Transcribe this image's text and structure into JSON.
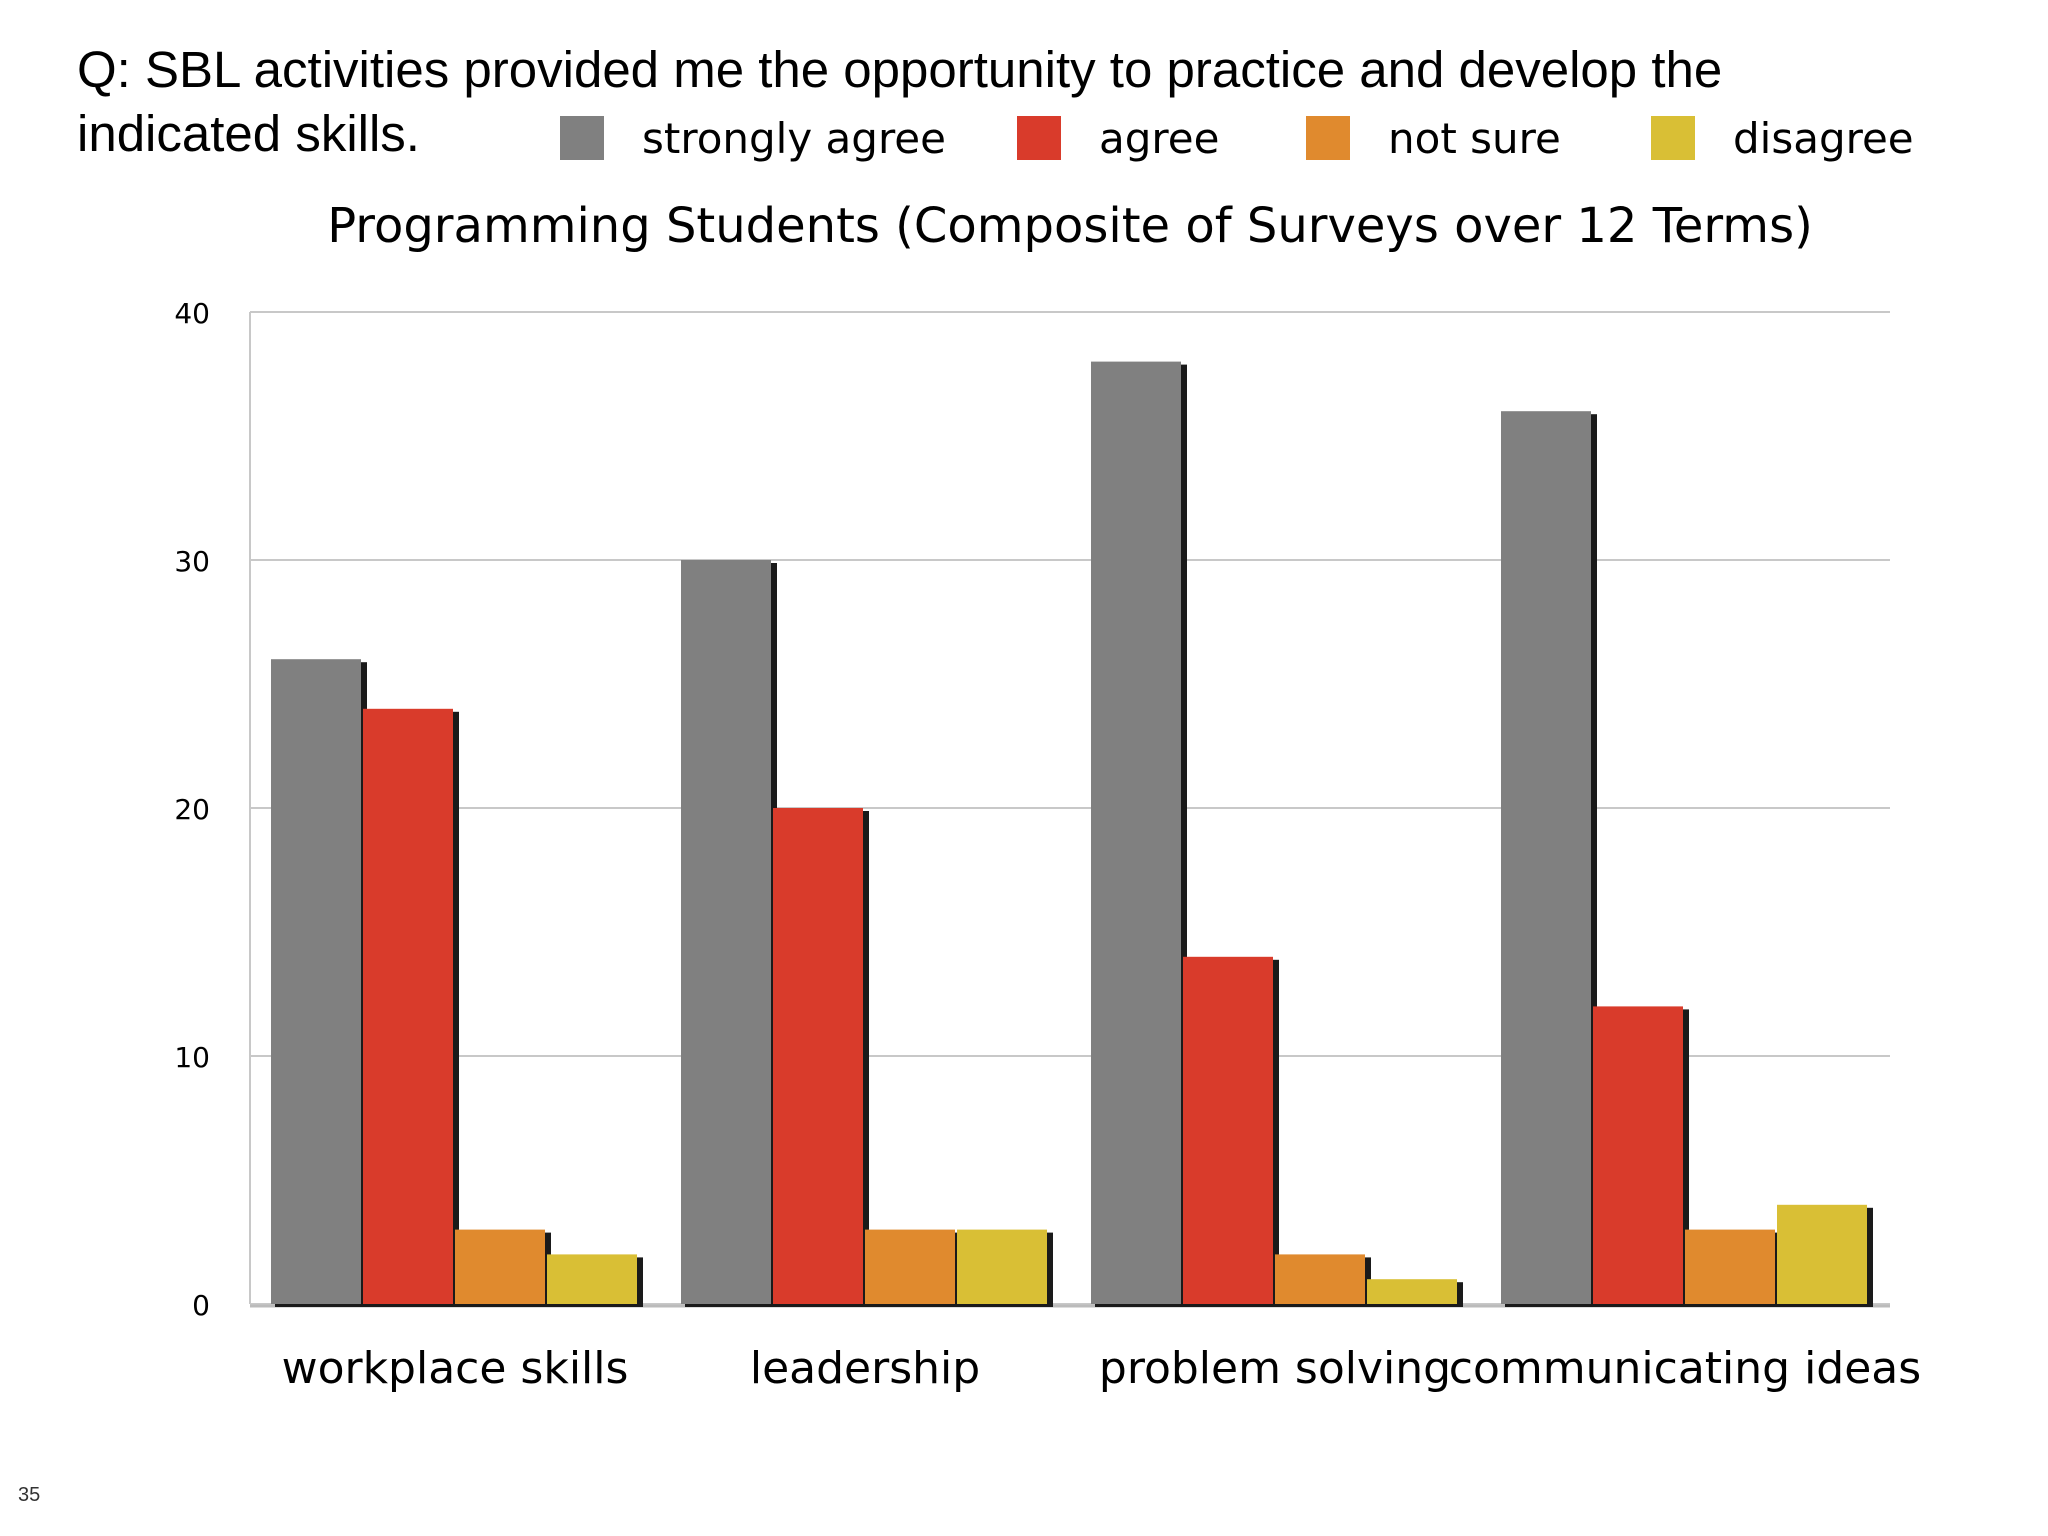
{
  "slide": {
    "question": "Q: SBL activities provided me the opportunity to practice and develop the indicated skills.",
    "slide_number": "35"
  },
  "chart_data": {
    "type": "bar",
    "title": "Programming Students (Composite of Surveys over 12 Terms)",
    "categories": [
      "workplace skills",
      "leadership",
      "problem solving",
      "communicating ideas"
    ],
    "series": [
      {
        "name": "strongly agree",
        "color": "#808080",
        "values": [
          26,
          30,
          38,
          36
        ]
      },
      {
        "name": "agree",
        "color": "#d93b2b",
        "values": [
          24,
          20,
          14,
          12
        ]
      },
      {
        "name": "not sure",
        "color": "#e08a2e",
        "values": [
          3,
          3,
          2,
          3
        ]
      },
      {
        "name": "disagree",
        "color": "#d9bf35",
        "values": [
          2,
          3,
          1,
          4
        ]
      }
    ],
    "ylim": [
      0,
      40
    ],
    "yticks": [
      "0",
      "10",
      "20",
      "30",
      "40"
    ],
    "xlabel": "",
    "ylabel": "",
    "grid": true,
    "legend_position": "top"
  }
}
